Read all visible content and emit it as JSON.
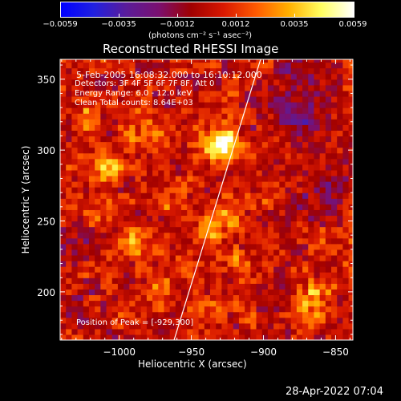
{
  "colorbar": {
    "ticks": [
      "-0.0059",
      "-0.0035",
      "-0.0012",
      "0.0012",
      "0.0035",
      "0.0059"
    ],
    "units": "(photons cm⁻² s⁻¹ asec⁻²)",
    "gradient": [
      "#0000ff",
      "#2020e0",
      "#5a1c9a",
      "#7a1070",
      "#a00000",
      "#d81800",
      "#ff5a00",
      "#ffb000",
      "#ffff60",
      "#ffffff"
    ]
  },
  "title": "Reconstructed RHESSI Image",
  "info_lines": [
    "5-Feb-2005 16:08:32.000 to 16:10:12.000",
    "Detectors: 3F 4F 5F 6F 7F 8F, Att 0",
    "Energy Range: 6.0 - 12.0 keV",
    "Clean     Total counts: 8.64E+03"
  ],
  "peak_label": "Position of Peak = [-929,300]",
  "xlabel": "Heliocentric X (arcsec)",
  "ylabel": "Heliocentric Y (arcsec)",
  "footer_date": "28-Apr-2022 07:04",
  "chart_data": {
    "type": "heatmap",
    "title": "Reconstructed RHESSI Image",
    "xlabel": "Heliocentric X (arcsec)",
    "ylabel": "Heliocentric Y (arcsec)",
    "xlim": [
      -1041,
      -838
    ],
    "ylim": [
      166,
      364
    ],
    "xticks": [
      -1000,
      -950,
      -900,
      -850
    ],
    "yticks": [
      200,
      250,
      300,
      350
    ],
    "xtick_labels": [
      "−1000",
      "−950",
      "−900",
      "−850"
    ],
    "ytick_labels": [
      "200",
      "250",
      "300",
      "350"
    ],
    "colorbar_range": [
      -0.0059,
      0.0059
    ],
    "peak": {
      "x": -929,
      "y": 300
    },
    "limb_line": [
      [
        -962,
        166
      ],
      [
        -902,
        364
      ]
    ],
    "sources": [
      {
        "x": -929,
        "y": 303,
        "r": 9,
        "v": 0.0059
      },
      {
        "x": -1009,
        "y": 286,
        "r": 8,
        "v": 0.0034
      },
      {
        "x": -990,
        "y": 236,
        "r": 7,
        "v": 0.0022
      },
      {
        "x": -941,
        "y": 243,
        "r": 7,
        "v": 0.0023
      },
      {
        "x": -961,
        "y": 262,
        "r": 7,
        "v": 0.002
      },
      {
        "x": -955,
        "y": 216,
        "r": 7,
        "v": 0.0022
      },
      {
        "x": -917,
        "y": 222,
        "r": 7,
        "v": 0.0024
      },
      {
        "x": -866,
        "y": 194,
        "r": 8,
        "v": 0.0031
      },
      {
        "x": -982,
        "y": 310,
        "r": 9,
        "v": 0.0019
      },
      {
        "x": -1022,
        "y": 326,
        "r": 8,
        "v": 0.0017
      },
      {
        "x": -925,
        "y": 254,
        "r": 8,
        "v": 0.0021
      },
      {
        "x": -897,
        "y": 268,
        "r": 7,
        "v": 0.0014
      },
      {
        "x": -976,
        "y": 200,
        "r": 7,
        "v": 0.0018
      },
      {
        "x": -932,
        "y": 184,
        "r": 7,
        "v": 0.0016
      },
      {
        "x": -1017,
        "y": 262,
        "r": 7,
        "v": 0.0016
      },
      {
        "x": -1030,
        "y": 230,
        "r": 8,
        "v": -0.0018
      },
      {
        "x": -870,
        "y": 320,
        "r": 10,
        "v": -0.0021
      },
      {
        "x": -860,
        "y": 270,
        "r": 10,
        "v": -0.0016
      },
      {
        "x": -1025,
        "y": 185,
        "r": 9,
        "v": -0.0014
      },
      {
        "x": -880,
        "y": 350,
        "r": 10,
        "v": -0.0018
      },
      {
        "x": -900,
        "y": 330,
        "r": 8,
        "v": -0.0012
      }
    ]
  }
}
